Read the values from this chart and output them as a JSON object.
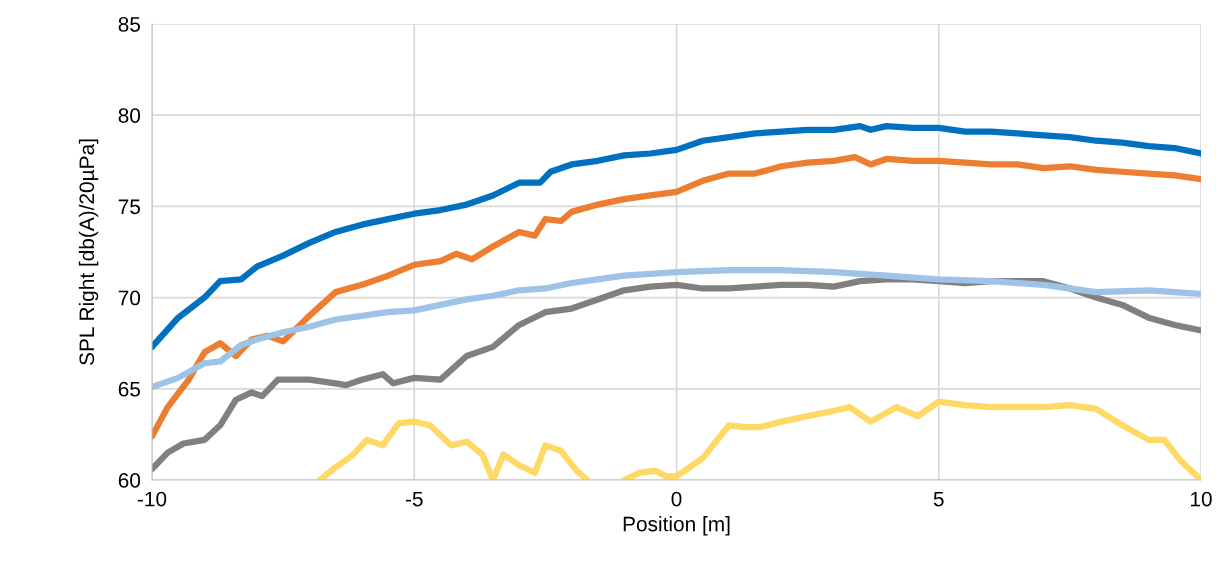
{
  "chart_data": {
    "type": "line",
    "xlabel": "Position [m]",
    "ylabel": "SPL Right [db(A)/20µPa]",
    "xlim": [
      -10,
      10
    ],
    "xticks": [
      -10,
      -5,
      0,
      5,
      10
    ],
    "ylim": [
      60,
      85
    ],
    "yticks": [
      60,
      65,
      70,
      75,
      80,
      85
    ],
    "grid": true,
    "marker": "none",
    "line_style": "solid",
    "series": [
      {
        "color": "#0070c0",
        "x": [
          -10,
          -9.5,
          -9,
          -8.7,
          -8.3,
          -8,
          -7.5,
          -7,
          -6.5,
          -6,
          -5.5,
          -5,
          -4.5,
          -4,
          -3.5,
          -3,
          -2.6,
          -2.4,
          -2,
          -1.5,
          -1,
          -0.5,
          0,
          0.5,
          1,
          1.5,
          2,
          2.5,
          3,
          3.5,
          3.7,
          4,
          4.5,
          5,
          5.5,
          6,
          6.5,
          7,
          7.5,
          8,
          8.5,
          9,
          9.5,
          10
        ],
        "values": [
          67.3,
          68.9,
          70.0,
          70.9,
          71.0,
          71.7,
          72.3,
          73.0,
          73.6,
          74.0,
          74.3,
          74.6,
          74.8,
          75.1,
          75.6,
          76.3,
          76.3,
          76.9,
          77.3,
          77.5,
          77.8,
          77.9,
          78.1,
          78.6,
          78.8,
          79.0,
          79.1,
          79.2,
          79.2,
          79.4,
          79.2,
          79.4,
          79.3,
          79.3,
          79.1,
          79.1,
          79.0,
          78.9,
          78.8,
          78.6,
          78.5,
          78.3,
          78.2,
          77.9
        ]
      },
      {
        "color": "#ed7d31",
        "x": [
          -10,
          -9.7,
          -9.3,
          -9,
          -8.7,
          -8.4,
          -8.1,
          -7.8,
          -7.5,
          -7,
          -6.5,
          -6,
          -5.5,
          -5,
          -4.5,
          -4.2,
          -3.9,
          -3.5,
          -3,
          -2.7,
          -2.5,
          -2.2,
          -2,
          -1.5,
          -1,
          -0.5,
          0,
          0.5,
          1,
          1.5,
          2,
          2.5,
          3,
          3.4,
          3.7,
          4,
          4.5,
          5,
          5.5,
          6,
          6.5,
          7,
          7.5,
          8,
          8.5,
          9,
          9.5,
          10
        ],
        "values": [
          62.4,
          64.0,
          65.5,
          67.0,
          67.5,
          66.8,
          67.7,
          67.9,
          67.6,
          69.0,
          70.3,
          70.7,
          71.2,
          71.8,
          72.0,
          72.4,
          72.1,
          72.8,
          73.6,
          73.4,
          74.3,
          74.2,
          74.7,
          75.1,
          75.4,
          75.6,
          75.8,
          76.4,
          76.8,
          76.8,
          77.2,
          77.4,
          77.5,
          77.7,
          77.3,
          77.6,
          77.5,
          77.5,
          77.4,
          77.3,
          77.3,
          77.1,
          77.2,
          77.0,
          76.9,
          76.8,
          76.7,
          76.5
        ]
      },
      {
        "color": "#808080",
        "x": [
          -10,
          -9.7,
          -9.4,
          -9,
          -8.7,
          -8.4,
          -8.1,
          -7.9,
          -7.6,
          -7,
          -6.5,
          -6.3,
          -6,
          -5.6,
          -5.4,
          -5,
          -4.5,
          -4,
          -3.5,
          -3,
          -2.5,
          -2,
          -1.5,
          -1,
          -0.5,
          0,
          0.5,
          1,
          1.5,
          2,
          2.5,
          3,
          3.5,
          4,
          4.5,
          5,
          5.5,
          6,
          7,
          7.5,
          8,
          8.5,
          9,
          9.5,
          10
        ],
        "values": [
          60.6,
          61.5,
          62.0,
          62.2,
          63.0,
          64.4,
          64.8,
          64.6,
          65.5,
          65.5,
          65.3,
          65.2,
          65.5,
          65.8,
          65.3,
          65.6,
          65.5,
          66.8,
          67.3,
          68.5,
          69.2,
          69.4,
          69.9,
          70.4,
          70.6,
          70.7,
          70.5,
          70.5,
          70.6,
          70.7,
          70.7,
          70.6,
          70.9,
          71.0,
          71.0,
          70.9,
          70.8,
          70.9,
          70.9,
          70.5,
          70.0,
          69.6,
          68.9,
          68.5,
          68.2
        ]
      },
      {
        "color": "#9dc3e6",
        "x": [
          -10,
          -9.5,
          -9,
          -8.7,
          -8.3,
          -8,
          -7.5,
          -7,
          -6.5,
          -6,
          -5.5,
          -5,
          -4.5,
          -4,
          -3.5,
          -3,
          -2.5,
          -2,
          -1.5,
          -1,
          0,
          1,
          2,
          3,
          4,
          5,
          6,
          7,
          8,
          9,
          10
        ],
        "values": [
          65.1,
          65.6,
          66.4,
          66.5,
          67.4,
          67.7,
          68.1,
          68.4,
          68.8,
          69.0,
          69.2,
          69.3,
          69.6,
          69.9,
          70.1,
          70.4,
          70.5,
          70.8,
          71.0,
          71.2,
          71.4,
          71.5,
          71.5,
          71.4,
          71.2,
          71.0,
          70.9,
          70.7,
          70.3,
          70.4,
          70.2
        ]
      },
      {
        "color": "#ffd966",
        "x": [
          -6.8,
          -6.5,
          -6.2,
          -5.9,
          -5.6,
          -5.3,
          -5,
          -4.7,
          -4.3,
          -4,
          -3.7,
          -3.5,
          -3.3,
          -3,
          -2.7,
          -2.5,
          -2.2,
          -1.9,
          -1.7,
          -1.3,
          -1,
          -0.7,
          -0.4,
          -0.2,
          0,
          0.5,
          1,
          1.3,
          1.6,
          2,
          2.5,
          3,
          3.3,
          3.7,
          4.2,
          4.6,
          5,
          5.5,
          6,
          7,
          7.5,
          8,
          8.5,
          9,
          9.3,
          9.6,
          10
        ],
        "values": [
          60.0,
          60.7,
          61.3,
          62.2,
          61.9,
          63.1,
          63.2,
          63.0,
          61.9,
          62.1,
          61.4,
          60.0,
          61.4,
          60.8,
          60.4,
          61.9,
          61.6,
          60.5,
          60.0,
          null,
          60.0,
          60.4,
          60.5,
          60.2,
          60.2,
          61.2,
          63.0,
          62.9,
          62.9,
          63.2,
          63.5,
          63.8,
          64.0,
          63.2,
          64.0,
          63.5,
          64.3,
          64.1,
          64.0,
          64.0,
          64.1,
          63.9,
          63.0,
          62.2,
          62.2,
          61.1,
          60.0
        ]
      }
    ]
  }
}
